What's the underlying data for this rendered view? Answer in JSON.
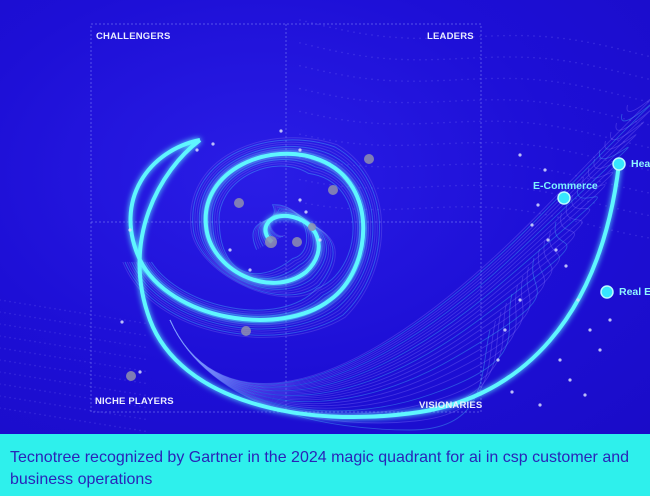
{
  "quadrant": {
    "top_left": "CHALLENGERS",
    "top_right": "LEADERS",
    "bottom_left": "NICHE PLAYERS",
    "bottom_right": "VISIONARIES"
  },
  "verticals": [
    {
      "label": "E-Commerce"
    },
    {
      "label": "Hea"
    },
    {
      "label": "Real E"
    }
  ],
  "caption": "Tecnotree recognized by Gartner in the 2024 magic quadrant for ai in csp customer and business operations",
  "colors": {
    "background": "#1f0fd8",
    "accent": "#2ef0ec",
    "caption_text": "#2a24b8",
    "spiral": "#5ef6ff"
  }
}
